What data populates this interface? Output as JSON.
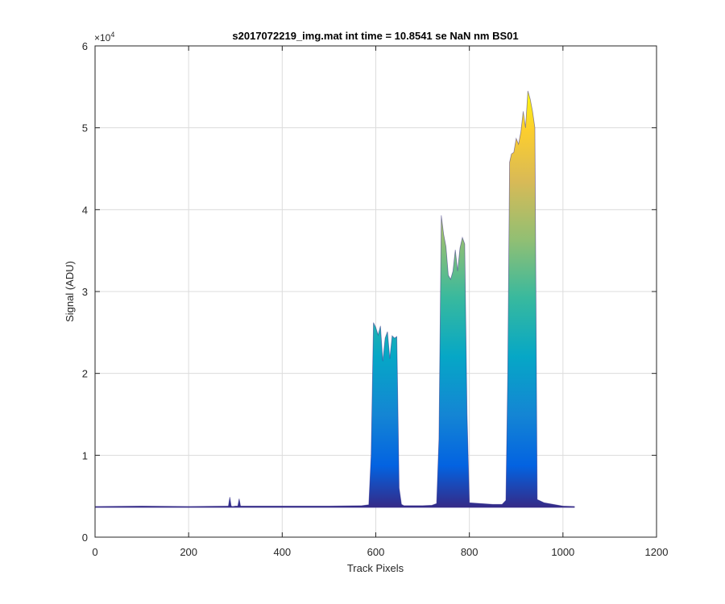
{
  "chart_data": {
    "type": "area",
    "title": "s2017072219_img.mat int time = 10.8541 se  NaN nm BS01",
    "xlabel": "Track Pixels",
    "ylabel": "Signal (ADU)",
    "xlim": [
      0,
      1200
    ],
    "ylim": [
      0,
      60000
    ],
    "x_ticks": [
      "0",
      "200",
      "400",
      "600",
      "800",
      "1000",
      "1200"
    ],
    "y_ticks": [
      "0",
      "1",
      "2",
      "3",
      "4",
      "5",
      "6"
    ],
    "y_exponent_base": "×10",
    "y_exponent_power": "4",
    "grid": true,
    "colormap": "parula",
    "series": [
      {
        "x": [
          0,
          100,
          200,
          285,
          288,
          291,
          294,
          300,
          305,
          308,
          311,
          320,
          400,
          500,
          570,
          585,
          590,
          595,
          600,
          605,
          610,
          615,
          620,
          625,
          630,
          635,
          640,
          645,
          650,
          655,
          660,
          700,
          720,
          730,
          735,
          740,
          745,
          750,
          755,
          760,
          765,
          770,
          775,
          780,
          785,
          790,
          795,
          800,
          850,
          870,
          878,
          882,
          886,
          890,
          895,
          900,
          905,
          910,
          915,
          920,
          925,
          930,
          935,
          940,
          945,
          960,
          1000,
          1025
        ],
        "y": [
          3750,
          3800,
          3750,
          3800,
          4900,
          3800,
          3750,
          3800,
          3800,
          4700,
          3800,
          3800,
          3800,
          3800,
          3850,
          3950,
          10000,
          26200,
          25600,
          24700,
          25800,
          21500,
          24300,
          25100,
          21800,
          24600,
          24300,
          24500,
          6000,
          4000,
          3850,
          3850,
          3900,
          4100,
          12000,
          39300,
          37000,
          35500,
          32000,
          31500,
          32500,
          35100,
          32500,
          35300,
          36600,
          35800,
          15000,
          4200,
          4000,
          4000,
          4500,
          20000,
          45800,
          46800,
          47000,
          48700,
          48000,
          49500,
          52000,
          50000,
          54500,
          53500,
          52000,
          50000,
          4600,
          4200,
          3800,
          3750
        ]
      }
    ]
  }
}
